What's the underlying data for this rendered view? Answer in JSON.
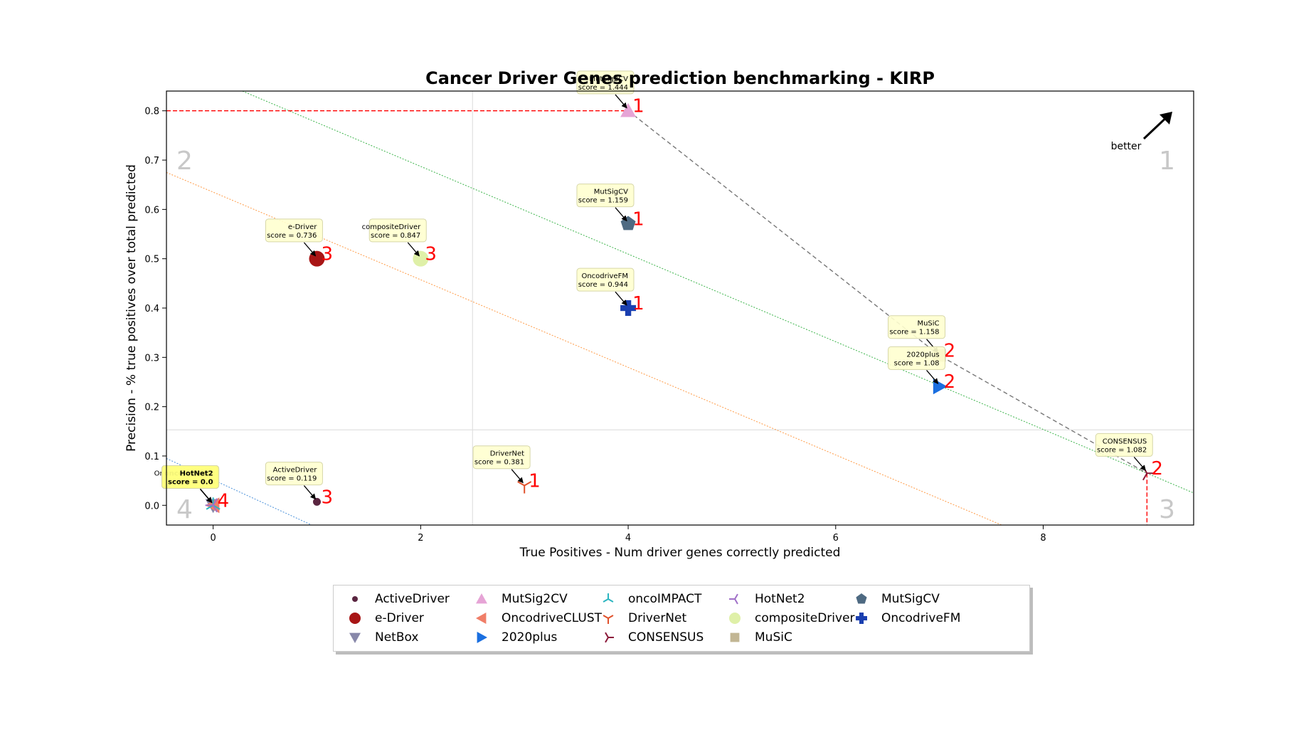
{
  "chart_data": {
    "type": "scatter",
    "title": "Cancer Driver Genes prediction benchmarking - KIRP",
    "xlabel": "True Positives - Num driver genes correctly predicted",
    "ylabel": "Precision - % true positives over total predicted",
    "xlim": [
      -0.45,
      9.45
    ],
    "ylim": [
      -0.04,
      0.84
    ],
    "xticks": [
      0,
      2,
      4,
      6,
      8
    ],
    "yticks": [
      0.0,
      0.1,
      0.2,
      0.3,
      0.4,
      0.5,
      0.6,
      0.7,
      0.8
    ],
    "x_mid": 2.5,
    "y_mid": 0.153,
    "quadrant_labels": [
      "1",
      "2",
      "3",
      "4"
    ],
    "better_label": "better",
    "points": [
      {
        "name": "ActiveDriver",
        "x": 1,
        "y": 0.007,
        "score": "0.119",
        "rank": "3",
        "marker": "o-small",
        "color": "#5a2540"
      },
      {
        "name": "e-Driver",
        "x": 1,
        "y": 0.5,
        "score": "0.736",
        "rank": "3",
        "marker": "o",
        "color": "#a81515"
      },
      {
        "name": "NetBox",
        "x": 0,
        "y": 0.0,
        "score": "0.0",
        "rank": "4",
        "marker": "v",
        "color": "#8888aa"
      },
      {
        "name": "MutSig2CV",
        "x": 4,
        "y": 0.8,
        "score": "1.444",
        "rank": "1",
        "marker": "^",
        "color": "#e6a4d6"
      },
      {
        "name": "OncodriveCLUST",
        "x": 0,
        "y": 0.0,
        "score": "0.0",
        "rank": "4",
        "marker": "<",
        "color": "#f07e68"
      },
      {
        "name": "2020plus",
        "x": 7,
        "y": 0.241,
        "score": "1.08",
        "rank": "2",
        "marker": ">",
        "color": "#1a6fe0"
      },
      {
        "name": "oncoIMPACT",
        "x": 0,
        "y": 0.0,
        "score": "0.0",
        "rank": "4",
        "marker": "tri_down",
        "color": "#2bb5c0"
      },
      {
        "name": "DriverNet",
        "x": 3,
        "y": 0.04,
        "score": "0.381",
        "rank": "1",
        "marker": "tri_up",
        "color": "#e0502a"
      },
      {
        "name": "CONSENSUS",
        "x": 9,
        "y": 0.065,
        "score": "1.082",
        "rank": "2",
        "marker": "tri_left",
        "color": "#8b1a3a"
      },
      {
        "name": "HotNet2",
        "x": 0,
        "y": 0.0,
        "score": "0.0",
        "rank": "4",
        "marker": "tri_right",
        "color": "#a070c8"
      },
      {
        "name": "compositeDriver",
        "x": 2,
        "y": 0.5,
        "score": "0.847",
        "rank": "3",
        "marker": "o",
        "color": "#dff0a8"
      },
      {
        "name": "MuSiC",
        "x": 7,
        "y": 0.304,
        "score": "1.158",
        "rank": "2",
        "marker": "s",
        "color": "#c2b694"
      },
      {
        "name": "MutSigCV",
        "x": 4,
        "y": 0.571,
        "score": "1.159",
        "rank": "1",
        "marker": "p",
        "color": "#4e6a82"
      },
      {
        "name": "OncodriveFM",
        "x": 4,
        "y": 0.4,
        "score": "0.944",
        "rank": "1",
        "marker": "P",
        "color": "#1a3fb0"
      }
    ],
    "annotations": [
      {
        "name": "ActiveDriver",
        "score_text": "score = 0.119",
        "ax": 1,
        "ay": 0.007,
        "bx": 0.78,
        "by": 0.063,
        "highlight": false
      },
      {
        "name": "e-Driver",
        "score_text": "score = 0.736",
        "ax": 1,
        "ay": 0.5,
        "bx": 0.78,
        "by": 0.556,
        "highlight": false
      },
      {
        "name": "compositeDriver",
        "score_text": "score = 0.847",
        "ax": 2,
        "ay": 0.5,
        "bx": 1.78,
        "by": 0.556,
        "highlight": false
      },
      {
        "name": "MutSig2CV",
        "score_text": "score = 1.444",
        "ax": 4,
        "ay": 0.8,
        "bx": 3.78,
        "by": 0.856,
        "highlight": false
      },
      {
        "name": "MutSigCV",
        "score_text": "score = 1.159",
        "ax": 4,
        "ay": 0.571,
        "bx": 3.78,
        "by": 0.627,
        "highlight": false
      },
      {
        "name": "OncodriveFM",
        "score_text": "score = 0.944",
        "ax": 4,
        "ay": 0.4,
        "bx": 3.78,
        "by": 0.456,
        "highlight": false
      },
      {
        "name": "DriverNet",
        "score_text": "score = 0.381",
        "ax": 3,
        "ay": 0.04,
        "bx": 2.78,
        "by": 0.096,
        "highlight": false
      },
      {
        "name": "MuSiC",
        "score_text": "score = 1.158",
        "ax": 7,
        "ay": 0.304,
        "bx": 6.78,
        "by": 0.36,
        "highlight": false
      },
      {
        "name": "2020plus",
        "score_text": "score = 1.08",
        "ax": 7,
        "ay": 0.241,
        "bx": 6.78,
        "by": 0.297,
        "highlight": false
      },
      {
        "name": "CONSENSUS",
        "score_text": "score = 1.082",
        "ax": 9,
        "ay": 0.065,
        "bx": 8.78,
        "by": 0.121,
        "highlight": false
      },
      {
        "name": "OncodriveCLUST",
        "score_text": "score = 0.0",
        "ax": 0,
        "ay": 0.0,
        "bx": -0.22,
        "by": 0.056,
        "highlight": false
      },
      {
        "name": "NetBox",
        "score_text": "score = 0.0",
        "ax": 0,
        "ay": 0.0,
        "bx": -0.22,
        "by": 0.056,
        "highlight": false
      },
      {
        "name": "oncoIMPACT",
        "score_text": "score = 0.0",
        "ax": 0,
        "ay": 0.0,
        "bx": -0.22,
        "by": 0.056,
        "highlight": true
      },
      {
        "name": "HotNet2",
        "score_text": "score = 0.0",
        "ax": 0,
        "ay": 0.0,
        "bx": -0.22,
        "by": 0.056,
        "highlight": true
      }
    ],
    "lines": [
      {
        "kind": "pareto",
        "color": "#777777",
        "points": [
          [
            4,
            0.8
          ],
          [
            7,
            0.304
          ],
          [
            9,
            0.065
          ]
        ]
      },
      {
        "kind": "red_hline",
        "color": "#ff0000",
        "y": 0.8,
        "x_to": 4
      },
      {
        "kind": "red_vline",
        "color": "#ff0000",
        "x": 9,
        "y_to": 0.065
      },
      {
        "kind": "diag",
        "color": "#3cb44b",
        "x1": -0.45,
        "y1": 0.905,
        "x2": 9.45,
        "y2": 0.025
      },
      {
        "kind": "diag",
        "color": "#ff9a45",
        "x1": -0.45,
        "y1": 0.675,
        "x2": 7.6,
        "y2": -0.04
      },
      {
        "kind": "diag",
        "color": "#4a90d9",
        "x1": -0.45,
        "y1": 0.095,
        "x2": 0.95,
        "y2": -0.04
      }
    ],
    "legend": {
      "placement": "bottom-center",
      "columns": [
        [
          "ActiveDriver",
          "e-Driver",
          "NetBox"
        ],
        [
          "MutSig2CV",
          "OncodriveCLUST",
          "2020plus"
        ],
        [
          "oncoIMPACT",
          "DriverNet",
          "CONSENSUS"
        ],
        [
          "HotNet2",
          "compositeDriver",
          "MuSiC"
        ],
        [
          "MutSigCV",
          "OncodriveFM"
        ]
      ]
    }
  }
}
